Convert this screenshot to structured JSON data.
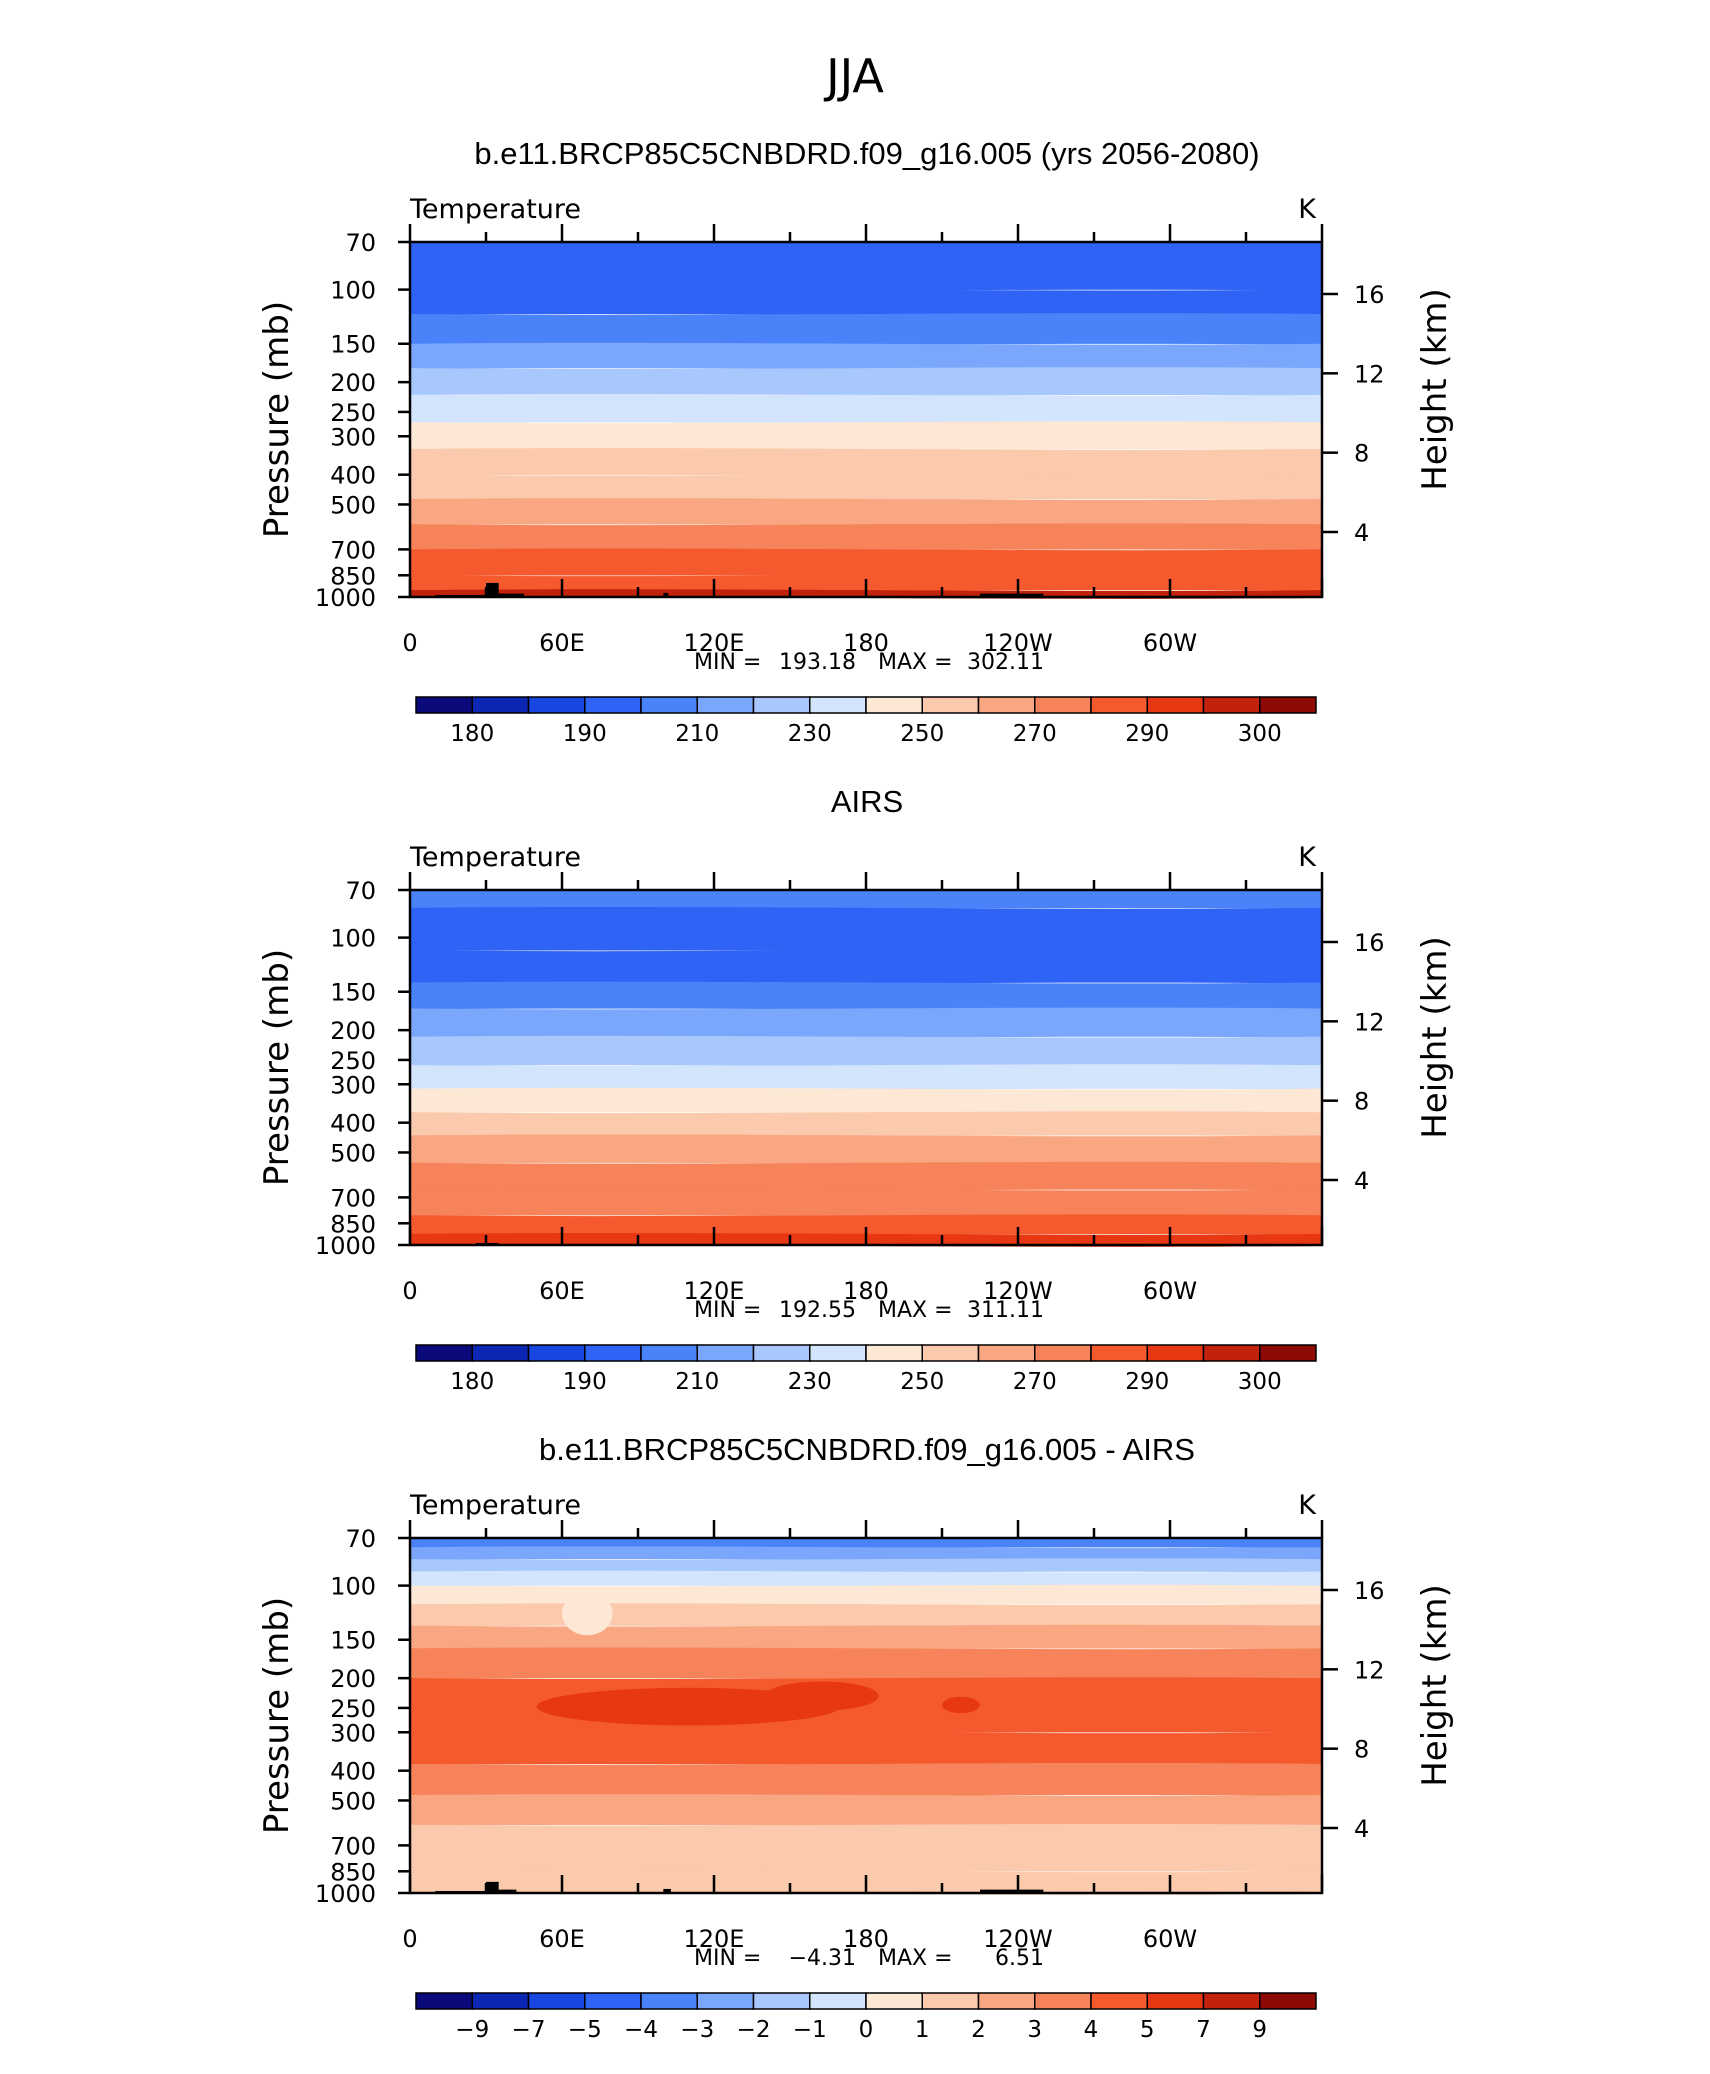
{
  "figure": {
    "title": "JJA"
  },
  "palette": {
    "temperature": [
      "#0b0a7a",
      "#0d27b5",
      "#1846e0",
      "#2e63f5",
      "#4a82f9",
      "#7aa6fb",
      "#a8c7fc",
      "#d3e4fd",
      "#fde7d5",
      "#fbc9ab",
      "#f9a682",
      "#f7835a",
      "#f45a2e",
      "#e83813",
      "#c2210c",
      "#8d0a05"
    ],
    "difference": [
      "#0b0a7a",
      "#0d27b5",
      "#1846e0",
      "#2e63f5",
      "#4a82f9",
      "#7aa6fb",
      "#a8c7fc",
      "#d3e4fd",
      "#fde7d5",
      "#fbc9ab",
      "#f9a682",
      "#f7835a",
      "#f45a2e",
      "#e83813",
      "#c2210c",
      "#8d0a05"
    ]
  },
  "chart_data": [
    {
      "type": "heatmap",
      "title": "b.e11.BRCP85C5CNBDRD.f09_g16.005 (yrs 2056-2080)",
      "subtitle_left": "Temperature",
      "subtitle_right": "K",
      "ylabel": "Pressure (mb)",
      "ylabel_right": "Height (km)",
      "x_ticks": [
        "0",
        "60E",
        "120E",
        "180",
        "120W",
        "60W"
      ],
      "x_tick_values": [
        0,
        60,
        120,
        180,
        240,
        300
      ],
      "xlim": [
        0,
        360
      ],
      "y_ticks": [
        "70",
        "100",
        "150",
        "200",
        "250",
        "300",
        "400",
        "500",
        "700",
        "850",
        "1000"
      ],
      "y_tick_values": [
        70,
        100,
        150,
        200,
        250,
        300,
        400,
        500,
        700,
        850,
        1000
      ],
      "ylim": [
        1000,
        70
      ],
      "y_scale": "log",
      "right_ticks": [
        "16",
        "12",
        "8",
        "4"
      ],
      "right_tick_values": [
        16,
        12,
        8,
        4
      ],
      "stats": {
        "min_label": "MIN =",
        "min": "193.18",
        "max_label": "MAX =",
        "max": "302.11"
      },
      "colorbar_labels": [
        "180",
        "190",
        "210",
        "230",
        "250",
        "270",
        "290",
        "300"
      ],
      "levels": [
        {
          "p": 70,
          "value": 197
        },
        {
          "p": 100,
          "value": 199
        },
        {
          "p": 120,
          "value": 205
        },
        {
          "p": 150,
          "value": 215
        },
        {
          "p": 180,
          "value": 224
        },
        {
          "p": 220,
          "value": 232
        },
        {
          "p": 270,
          "value": 243
        },
        {
          "p": 330,
          "value": 250
        },
        {
          "p": 400,
          "value": 257
        },
        {
          "p": 480,
          "value": 265
        },
        {
          "p": 580,
          "value": 272
        },
        {
          "p": 700,
          "value": 281
        },
        {
          "p": 850,
          "value": 289
        },
        {
          "p": 950,
          "value": 296
        },
        {
          "p": 1000,
          "value": 300
        }
      ],
      "topography": [
        [
          10,
          30,
          985
        ],
        [
          30,
          35,
          900
        ],
        [
          35,
          45,
          975
        ],
        [
          100,
          102,
          970
        ],
        [
          225,
          250,
          975
        ]
      ]
    },
    {
      "type": "heatmap",
      "title": "AIRS",
      "subtitle_left": "Temperature",
      "subtitle_right": "K",
      "ylabel": "Pressure (mb)",
      "ylabel_right": "Height (km)",
      "x_ticks": [
        "0",
        "60E",
        "120E",
        "180",
        "120W",
        "60W"
      ],
      "x_tick_values": [
        0,
        60,
        120,
        180,
        240,
        300
      ],
      "xlim": [
        0,
        360
      ],
      "y_ticks": [
        "70",
        "100",
        "150",
        "200",
        "250",
        "300",
        "400",
        "500",
        "700",
        "850",
        "1000"
      ],
      "y_tick_values": [
        70,
        100,
        150,
        200,
        250,
        300,
        400,
        500,
        700,
        850,
        1000
      ],
      "ylim": [
        1000,
        70
      ],
      "y_scale": "log",
      "right_ticks": [
        "16",
        "12",
        "8",
        "4"
      ],
      "right_tick_values": [
        16,
        12,
        8,
        4
      ],
      "stats": {
        "min_label": "MIN =",
        "min": "192.55",
        "max_label": "MAX =",
        "max": "311.11"
      },
      "colorbar_labels": [
        "180",
        "190",
        "210",
        "230",
        "250",
        "270",
        "290",
        "300"
      ],
      "levels": [
        {
          "p": 70,
          "value": 200
        },
        {
          "p": 80,
          "value": 196
        },
        {
          "p": 110,
          "value": 197
        },
        {
          "p": 140,
          "value": 206
        },
        {
          "p": 170,
          "value": 216
        },
        {
          "p": 210,
          "value": 226
        },
        {
          "p": 260,
          "value": 236
        },
        {
          "p": 310,
          "value": 246
        },
        {
          "p": 370,
          "value": 253
        },
        {
          "p": 440,
          "value": 261
        },
        {
          "p": 540,
          "value": 270
        },
        {
          "p": 660,
          "value": 278
        },
        {
          "p": 800,
          "value": 287
        },
        {
          "p": 920,
          "value": 294
        },
        {
          "p": 1000,
          "value": 300
        }
      ],
      "topography": [
        [
          26,
          35,
          985
        ]
      ]
    },
    {
      "type": "heatmap",
      "title": "b.e11.BRCP85C5CNBDRD.f09_g16.005 - AIRS",
      "subtitle_left": "Temperature",
      "subtitle_right": "K",
      "ylabel": "Pressure (mb)",
      "ylabel_right": "Height (km)",
      "x_ticks": [
        "0",
        "60E",
        "120E",
        "180",
        "120W",
        "60W"
      ],
      "x_tick_values": [
        0,
        60,
        120,
        180,
        240,
        300
      ],
      "xlim": [
        0,
        360
      ],
      "y_ticks": [
        "70",
        "100",
        "150",
        "200",
        "250",
        "300",
        "400",
        "500",
        "700",
        "850",
        "1000"
      ],
      "y_tick_values": [
        70,
        100,
        150,
        200,
        250,
        300,
        400,
        500,
        700,
        850,
        1000
      ],
      "ylim": [
        1000,
        70
      ],
      "y_scale": "log",
      "right_ticks": [
        "16",
        "12",
        "8",
        "4"
      ],
      "right_tick_values": [
        16,
        12,
        8,
        4
      ],
      "stats": {
        "min_label": "MIN =",
        "min": "−4.31",
        "max_label": "MAX =",
        "max": "6.51"
      },
      "colorbar_labels": [
        "−9",
        "−7",
        "−5",
        "−4",
        "−3",
        "−2",
        "−1",
        "0",
        "1",
        "2",
        "3",
        "4",
        "5",
        "7",
        "9"
      ],
      "levels": [
        {
          "p": 70,
          "value": -3.5
        },
        {
          "p": 75,
          "value": -2.5
        },
        {
          "p": 82,
          "value": -1.5
        },
        {
          "p": 90,
          "value": -0.5
        },
        {
          "p": 100,
          "value": 0.5
        },
        {
          "p": 115,
          "value": 1.5
        },
        {
          "p": 135,
          "value": 2.5
        },
        {
          "p": 160,
          "value": 3.5
        },
        {
          "p": 200,
          "value": 4.5
        },
        {
          "p": 300,
          "value": 4.5
        },
        {
          "p": 380,
          "value": 3.5
        },
        {
          "p": 480,
          "value": 2.5
        },
        {
          "p": 600,
          "value": 1.5
        },
        {
          "p": 850,
          "value": 1.5
        },
        {
          "p": 1000,
          "value": 1.5
        }
      ],
      "patches": [
        {
          "lon": [
            50,
            170
          ],
          "p": [
            215,
            285
          ],
          "value": 5.5
        },
        {
          "lon": [
            140,
            185
          ],
          "p": [
            205,
            255
          ],
          "value": 5.5
        },
        {
          "lon": [
            210,
            225
          ],
          "p": [
            230,
            260
          ],
          "value": 5.5
        },
        {
          "lon": [
            60,
            80
          ],
          "p": [
            105,
            145
          ],
          "value": 0.5
        }
      ],
      "topography": [
        [
          10,
          30,
          985
        ],
        [
          30,
          35,
          920
        ],
        [
          35,
          42,
          975
        ],
        [
          100,
          103,
          970
        ],
        [
          225,
          250,
          975
        ]
      ]
    }
  ]
}
